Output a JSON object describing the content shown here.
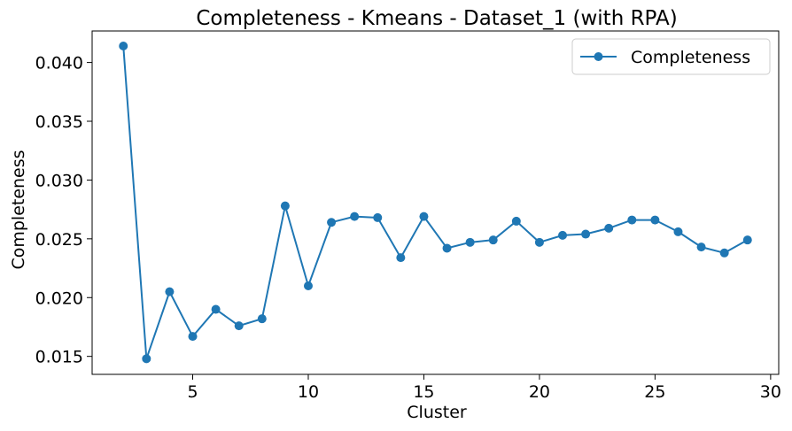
{
  "chart_data": {
    "type": "line",
    "title": "Completeness - Kmeans - Dataset_1 (with RPA)",
    "xlabel": "Cluster",
    "ylabel": "Completeness",
    "xlim": [
      0.65,
      30.35
    ],
    "ylim": [
      0.01347,
      0.04268
    ],
    "xticks": [
      5,
      10,
      15,
      20,
      25,
      30
    ],
    "xtick_labels": [
      "5",
      "10",
      "15",
      "20",
      "25",
      "30"
    ],
    "yticks": [
      0.015,
      0.02,
      0.025,
      0.03,
      0.035,
      0.04
    ],
    "ytick_labels": [
      "0.015",
      "0.020",
      "0.025",
      "0.030",
      "0.035",
      "0.040"
    ],
    "grid": false,
    "legend_position": "top-right",
    "series": [
      {
        "name": "Completeness",
        "color": "#1f77b4",
        "marker": "circle",
        "x": [
          2,
          3,
          4,
          5,
          6,
          7,
          8,
          9,
          10,
          11,
          12,
          13,
          14,
          15,
          16,
          17,
          18,
          19,
          20,
          21,
          22,
          23,
          24,
          25,
          26,
          27,
          28,
          29
        ],
        "y": [
          0.0414,
          0.0148,
          0.0205,
          0.0167,
          0.019,
          0.0176,
          0.0182,
          0.0278,
          0.021,
          0.0264,
          0.0269,
          0.0268,
          0.0234,
          0.0269,
          0.0242,
          0.0247,
          0.0249,
          0.0265,
          0.0247,
          0.0253,
          0.0254,
          0.0259,
          0.0266,
          0.0266,
          0.0256,
          0.0243,
          0.0238,
          0.0249
        ]
      }
    ]
  }
}
